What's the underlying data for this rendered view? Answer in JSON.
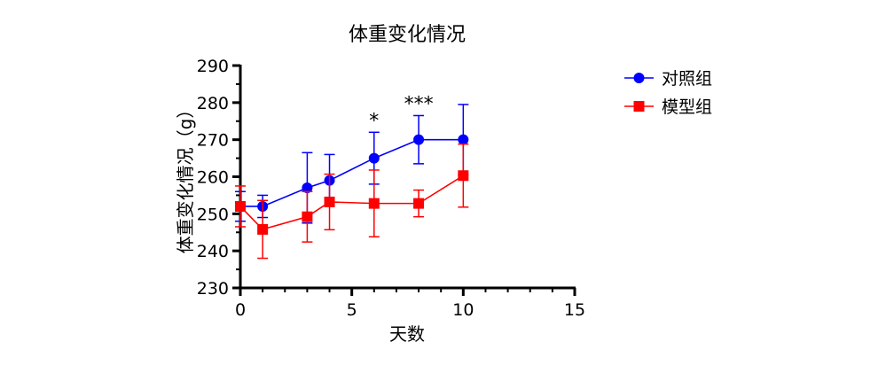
{
  "chart_data": {
    "type": "line",
    "title": "体重变化情况",
    "xlabel": "天数",
    "ylabel": "体重变化情况（g）",
    "xlim": [
      0,
      15
    ],
    "ylim": [
      230,
      290
    ],
    "xticks": [
      0,
      5,
      10,
      15
    ],
    "yticks": [
      230,
      240,
      250,
      260,
      270,
      280,
      290
    ],
    "x": [
      0,
      1,
      3,
      4,
      6,
      8,
      10
    ],
    "series": [
      {
        "name": "对照组",
        "color": "#0000ff",
        "marker": "circle",
        "values": [
          252,
          252,
          257,
          259,
          265,
          270,
          270
        ],
        "errors": [
          4,
          3,
          9.5,
          7,
          7,
          6.5,
          9.5
        ]
      },
      {
        "name": "模型组",
        "color": "#ff0000",
        "marker": "square",
        "values": [
          252,
          245.8,
          249.2,
          253.2,
          252.8,
          252.8,
          260.3
        ],
        "errors": [
          5.5,
          7.8,
          6.8,
          7.5,
          9,
          3.6,
          8.5
        ]
      }
    ],
    "annotations": [
      {
        "x": 6,
        "text": "*"
      },
      {
        "x": 8,
        "text": "***"
      }
    ],
    "legend": "right",
    "grid": false
  }
}
